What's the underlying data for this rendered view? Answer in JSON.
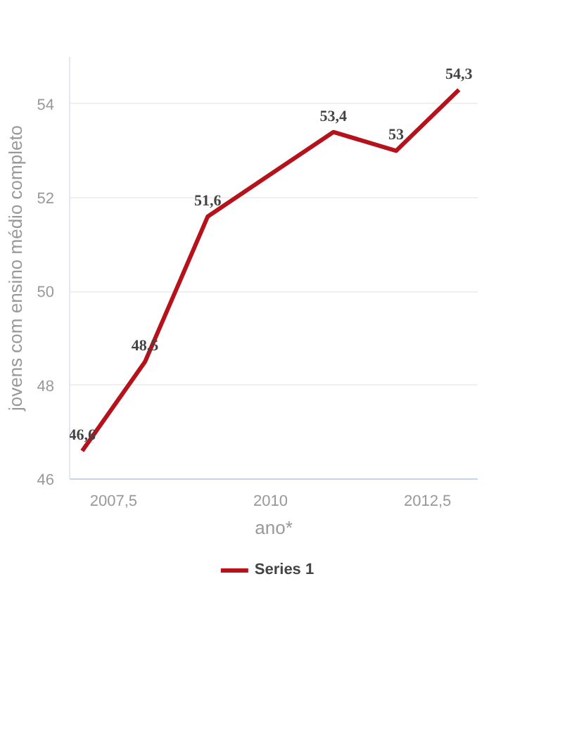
{
  "chart_data": {
    "type": "line",
    "xlabel": "ano*",
    "ylabel": "jovens com ensino médio completo",
    "x": [
      2007,
      2008,
      2009,
      2011,
      2012,
      2013
    ],
    "series": [
      {
        "name": "Series 1",
        "color": "#b5121b",
        "values": [
          46.6,
          48.5,
          51.6,
          53.4,
          53,
          54.3
        ],
        "value_labels": [
          "46,6",
          "48,5",
          "51,6",
          "53,4",
          "53",
          "54,3"
        ]
      }
    ],
    "xlim": [
      2006.8,
      2013.3
    ],
    "xticks": [
      {
        "value": 2007.5,
        "label": "2007,5"
      },
      2010,
      {
        "value": 2012.5,
        "label": "2012,5"
      }
    ],
    "ylim": [
      46,
      55
    ],
    "yticks": [
      46,
      48,
      50,
      52,
      54
    ],
    "grid": "y",
    "legend": "bottom",
    "marker": "none",
    "line_style": "solid"
  }
}
